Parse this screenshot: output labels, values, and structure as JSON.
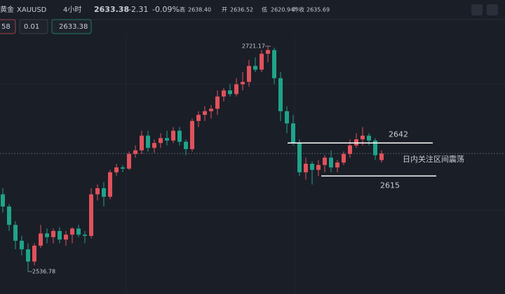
{
  "header": {
    "symbol_name": "黄金",
    "symbol": "XAUUSD",
    "interval": "4小时",
    "change": "-2.31",
    "change_pct": "-0.09%",
    "high_label": "高",
    "high": "2638.40",
    "open_label": "开",
    "open": "2636.52",
    "low_label": "低",
    "low": "2620.94",
    "prev_label": "昨收",
    "prev": "2635.69",
    "qty": "58",
    "step": "0.01"
  },
  "chart_data": {
    "type": "candlestick",
    "up_color": "#e0525c",
    "down_color": "#1fa38a",
    "open": [
      2600,
      2590,
      2575,
      2562,
      2555,
      2545,
      2558,
      2568,
      2565,
      2570,
      2563,
      2567,
      2572,
      2567,
      2566,
      2600,
      2605,
      2598,
      2618,
      2622,
      2621,
      2633,
      2636,
      2648,
      2638,
      2642,
      2646,
      2644,
      2652,
      2643,
      2637,
      2660,
      2665,
      2668,
      2670,
      2680,
      2685,
      2682,
      2690,
      2692,
      2705,
      2702,
      2715,
      2718,
      2695,
      2668,
      2658,
      2642,
      2618,
      2625,
      2620,
      2624,
      2630,
      2622,
      2626,
      2633,
      2640,
      2645,
      2648,
      2644,
      2628
    ],
    "high": [
      2605,
      2592,
      2578,
      2566,
      2560,
      2560,
      2575,
      2572,
      2572,
      2573,
      2570,
      2573,
      2575,
      2570,
      2605,
      2608,
      2610,
      2620,
      2625,
      2624,
      2635,
      2640,
      2652,
      2652,
      2645,
      2650,
      2652,
      2655,
      2655,
      2645,
      2662,
      2668,
      2672,
      2673,
      2685,
      2687,
      2690,
      2695,
      2700,
      2710,
      2712,
      2718,
      2721.17,
      2720,
      2700,
      2672,
      2665,
      2645,
      2630,
      2627,
      2628,
      2632,
      2636,
      2628,
      2635,
      2645,
      2650,
      2655,
      2650,
      2646,
      2636
    ],
    "low": [
      2585,
      2570,
      2555,
      2550,
      2536.78,
      2542,
      2556,
      2560,
      2560,
      2560,
      2558,
      2560,
      2565,
      2560,
      2564,
      2595,
      2590,
      2596,
      2615,
      2618,
      2620,
      2630,
      2633,
      2635,
      2634,
      2638,
      2640,
      2642,
      2640,
      2632,
      2635,
      2655,
      2660,
      2662,
      2665,
      2676,
      2680,
      2680,
      2685,
      2688,
      2700,
      2700,
      2708,
      2690,
      2660,
      2650,
      2640,
      2615,
      2612,
      2608,
      2615,
      2618,
      2618,
      2618,
      2624,
      2630,
      2638,
      2640,
      2640,
      2628,
      2626
    ],
    "close": [
      2590,
      2575,
      2562,
      2555,
      2545,
      2558,
      2568,
      2565,
      2570,
      2563,
      2567,
      2572,
      2567,
      2566,
      2600,
      2605,
      2598,
      2618,
      2622,
      2621,
      2633,
      2636,
      2648,
      2638,
      2642,
      2646,
      2644,
      2652,
      2643,
      2637,
      2660,
      2665,
      2668,
      2670,
      2680,
      2685,
      2682,
      2690,
      2692,
      2705,
      2702,
      2715,
      2718,
      2695,
      2668,
      2658,
      2642,
      2618,
      2625,
      2620,
      2624,
      2630,
      2622,
      2626,
      2633,
      2640,
      2645,
      2648,
      2644,
      2632,
      2633.38
    ],
    "levels": [
      2642,
      2615
    ],
    "annotation": "日内关注区间震荡"
  }
}
